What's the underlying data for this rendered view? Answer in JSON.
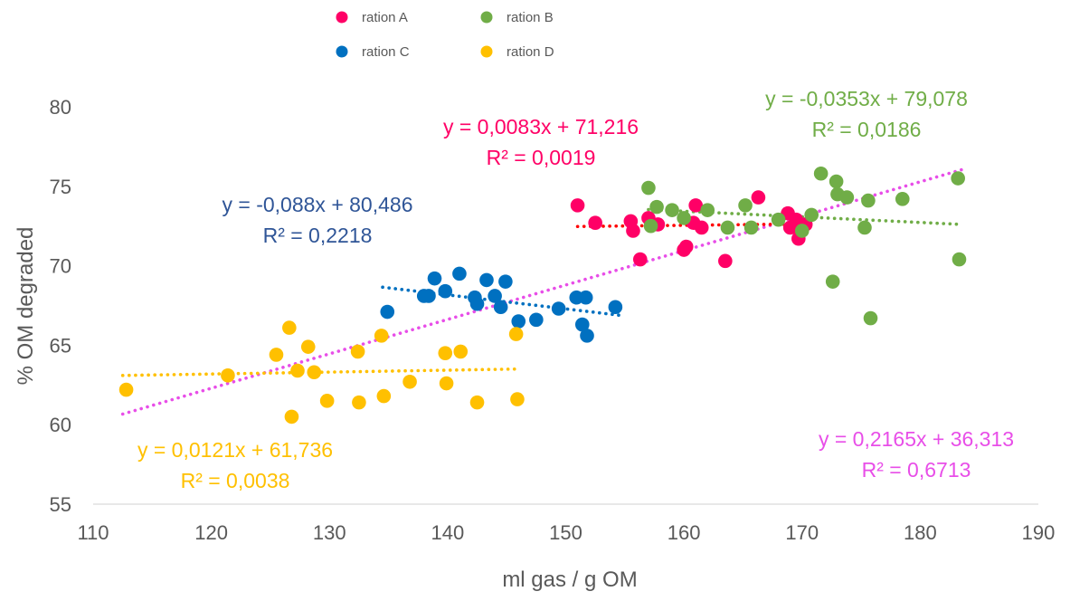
{
  "chart_data": {
    "type": "scatter",
    "title": "",
    "xlabel": "ml gas / g OM",
    "ylabel": "% OM degraded",
    "xlim": [
      110,
      190
    ],
    "ylim": [
      55,
      80
    ],
    "xticks": [
      110,
      120,
      130,
      140,
      150,
      160,
      170,
      180,
      190
    ],
    "yticks": [
      55,
      60,
      65,
      70,
      75,
      80
    ],
    "grid": false,
    "legend_position": "top",
    "series": [
      {
        "name": "ration A",
        "color": "#ff0066",
        "points": [
          [
            151.0,
            73.8
          ],
          [
            152.5,
            72.7
          ],
          [
            155.5,
            72.8
          ],
          [
            155.7,
            72.2
          ],
          [
            156.3,
            70.4
          ],
          [
            157.0,
            73.0
          ],
          [
            157.8,
            72.6
          ],
          [
            160.0,
            71.0
          ],
          [
            160.2,
            71.2
          ],
          [
            160.8,
            72.7
          ],
          [
            161.0,
            73.8
          ],
          [
            161.5,
            72.4
          ],
          [
            163.5,
            70.3
          ],
          [
            166.3,
            74.3
          ],
          [
            168.8,
            73.3
          ],
          [
            169.0,
            72.4
          ],
          [
            169.5,
            72.9
          ],
          [
            169.7,
            71.7
          ],
          [
            170.3,
            72.6
          ]
        ],
        "trend": {
          "slope": 0.0083,
          "intercept": 71.216,
          "x_range": [
            151,
            170.5
          ],
          "color": "#ff0000",
          "equation": "y = 0,0083x + 71,216",
          "r2_label": "R² = 0,0019",
          "text_color": "#ff0066"
        }
      },
      {
        "name": "ration B",
        "color": "#70ad47",
        "points": [
          [
            157.0,
            74.9
          ],
          [
            157.2,
            72.5
          ],
          [
            157.7,
            73.7
          ],
          [
            159.0,
            73.5
          ],
          [
            160.0,
            73.0
          ],
          [
            162.0,
            73.5
          ],
          [
            163.7,
            72.4
          ],
          [
            165.2,
            73.8
          ],
          [
            165.7,
            72.4
          ],
          [
            168.0,
            72.9
          ],
          [
            170.0,
            72.2
          ],
          [
            170.8,
            73.2
          ],
          [
            171.6,
            75.8
          ],
          [
            172.6,
            69.0
          ],
          [
            172.9,
            75.3
          ],
          [
            173.0,
            74.5
          ],
          [
            173.8,
            74.3
          ],
          [
            175.3,
            72.4
          ],
          [
            175.6,
            74.1
          ],
          [
            175.8,
            66.7
          ],
          [
            178.5,
            74.2
          ],
          [
            183.2,
            75.5
          ],
          [
            183.3,
            70.4
          ]
        ],
        "trend": {
          "slope": -0.0353,
          "intercept": 79.078,
          "x_range": [
            157,
            183.5
          ],
          "color": "#70ad47",
          "equation": "y = -0,0353x + 79,078",
          "r2_label": "R² = 0,0186",
          "text_color": "#70ad47"
        }
      },
      {
        "name": "ration C",
        "color": "#0070c0",
        "points": [
          [
            134.9,
            67.1
          ],
          [
            138.0,
            68.1
          ],
          [
            138.4,
            68.1
          ],
          [
            138.9,
            69.2
          ],
          [
            139.8,
            68.4
          ],
          [
            141.0,
            69.5
          ],
          [
            142.3,
            68.0
          ],
          [
            142.5,
            67.6
          ],
          [
            143.3,
            69.1
          ],
          [
            144.0,
            68.1
          ],
          [
            144.5,
            67.4
          ],
          [
            144.9,
            69.0
          ],
          [
            146.0,
            66.5
          ],
          [
            147.5,
            66.6
          ],
          [
            149.4,
            67.3
          ],
          [
            150.9,
            68.0
          ],
          [
            151.4,
            66.3
          ],
          [
            151.7,
            68.0
          ],
          [
            151.8,
            65.6
          ],
          [
            154.2,
            67.4
          ]
        ],
        "trend": {
          "slope": -0.088,
          "intercept": 80.486,
          "x_range": [
            134.5,
            154.5
          ],
          "color": "#0070c0",
          "equation": "y = -0,088x + 80,486",
          "r2_label": "R² = 0,2218",
          "text_color": "#2f5597"
        }
      },
      {
        "name": "ration D",
        "color": "#ffc000",
        "points": [
          [
            112.8,
            62.2
          ],
          [
            121.4,
            63.1
          ],
          [
            125.5,
            64.4
          ],
          [
            126.6,
            66.1
          ],
          [
            126.8,
            60.5
          ],
          [
            127.3,
            63.4
          ],
          [
            128.2,
            64.9
          ],
          [
            128.7,
            63.3
          ],
          [
            129.8,
            61.5
          ],
          [
            132.4,
            64.6
          ],
          [
            132.5,
            61.4
          ],
          [
            134.4,
            65.6
          ],
          [
            134.6,
            61.8
          ],
          [
            136.8,
            62.7
          ],
          [
            139.8,
            64.5
          ],
          [
            139.9,
            62.6
          ],
          [
            141.1,
            64.6
          ],
          [
            142.5,
            61.4
          ],
          [
            145.8,
            65.7
          ],
          [
            145.9,
            61.6
          ]
        ],
        "trend": {
          "slope": 0.0121,
          "intercept": 61.736,
          "x_range": [
            112.5,
            146
          ],
          "color": "#ffc000",
          "equation": "y = 0,0121x + 61,736",
          "r2_label": "R² = 0,0038",
          "text_color": "#ffc000"
        }
      }
    ],
    "overall_trend": {
      "slope": 0.2165,
      "intercept": 36.313,
      "x_range": [
        112.5,
        183.5
      ],
      "color": "#e84ee8",
      "equation": "y = 0,2165x + 36,313",
      "r2_label": "R² = 0,6713",
      "text_color": "#e84ee8"
    }
  }
}
